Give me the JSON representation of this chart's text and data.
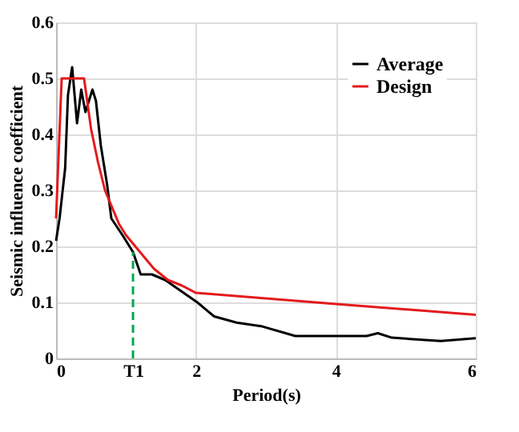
{
  "chart_data": {
    "type": "line",
    "xlabel": "Period(s)",
    "ylabel": "Seismic influence coefficient",
    "xlim": [
      0,
      6
    ],
    "xticks": [
      0,
      {
        "value": 1.1,
        "label": "T1"
      },
      2,
      4,
      6
    ],
    "ylim": [
      0,
      0.6
    ],
    "yticks": [
      0,
      0.1,
      0.2,
      0.3,
      0.4,
      0.5,
      0.6
    ],
    "grid": true,
    "legend": "top right",
    "line_style": "solid",
    "marker": "none",
    "series": [
      {
        "name": "Average",
        "color": "#000000",
        "x": [
          0,
          0.05,
          0.13,
          0.17,
          0.23,
          0.3,
          0.36,
          0.42,
          0.52,
          0.57,
          0.64,
          0.73,
          0.79,
          0.95,
          1.1,
          1.21,
          1.37,
          1.56,
          1.79,
          2.02,
          2.26,
          2.58,
          2.95,
          3.42,
          4.44,
          4.6,
          4.8,
          5.5,
          6
        ],
        "values": [
          0.21,
          0.25,
          0.34,
          0.47,
          0.52,
          0.42,
          0.48,
          0.44,
          0.48,
          0.46,
          0.38,
          0.31,
          0.25,
          0.22,
          0.19,
          0.15,
          0.15,
          0.14,
          0.12,
          0.1,
          0.075,
          0.064,
          0.057,
          0.04,
          0.04,
          0.045,
          0.037,
          0.031,
          0.036
        ]
      },
      {
        "name": "Design",
        "color": "#e41a1c",
        "x": [
          0,
          0.08,
          0.4,
          0.5,
          0.6,
          0.7,
          0.8,
          0.9,
          1.0,
          1.2,
          1.4,
          1.6,
          1.8,
          2.0,
          4,
          6
        ],
        "values": [
          0.25,
          0.5,
          0.5,
          0.41,
          0.35,
          0.3,
          0.27,
          0.24,
          0.22,
          0.19,
          0.16,
          0.14,
          0.13,
          0.117,
          0.097,
          0.078
        ]
      },
      {
        "color": "#00a651",
        "line_style": "dashed",
        "x": [
          1.1,
          1.1
        ],
        "values": [
          0,
          0.19
        ]
      }
    ]
  }
}
